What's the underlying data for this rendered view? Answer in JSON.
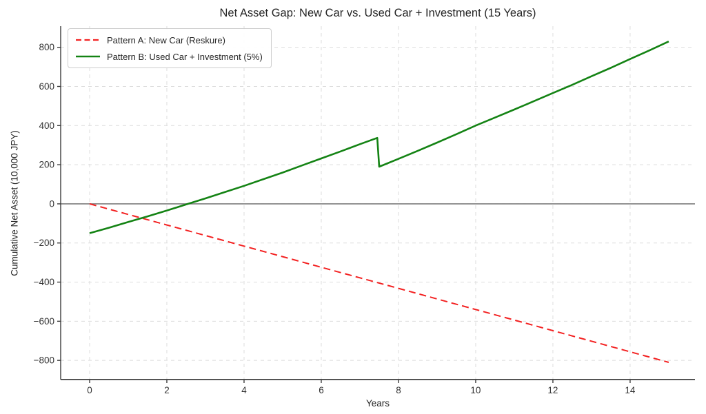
{
  "chart_data": {
    "type": "line",
    "title": "Net Asset Gap: New Car vs. Used Car + Investment (15 Years)",
    "xlabel": "Years",
    "ylabel": "Cumulative Net Asset (10,000 JPY)",
    "xlim": [
      -0.75,
      15.68
    ],
    "ylim": [
      -898,
      908
    ],
    "x_ticks": [
      0,
      2,
      4,
      6,
      8,
      10,
      12,
      14
    ],
    "x_tick_labels": [
      "0",
      "2",
      "4",
      "6",
      "8",
      "10",
      "12",
      "14"
    ],
    "y_ticks": [
      -800,
      -600,
      -400,
      -200,
      0,
      200,
      400,
      600,
      800
    ],
    "y_tick_labels": [
      "−800",
      "−600",
      "−400",
      "−200",
      "0",
      "200",
      "400",
      "600",
      "800"
    ],
    "grid": {
      "visible": true,
      "style": "dashed",
      "color": "#dcdcdc"
    },
    "zero_line": {
      "y": 0,
      "color": "#7d7d7d"
    },
    "legend_position": "upper-left",
    "series": [
      {
        "name": "Pattern A: New Car (Reskure)",
        "color": "#f32121",
        "line_style": "dashed",
        "line_width": 2,
        "points": [
          [
            0,
            0
          ],
          [
            1,
            -54
          ],
          [
            2,
            -108
          ],
          [
            3,
            -162
          ],
          [
            4,
            -216
          ],
          [
            5,
            -270
          ],
          [
            6,
            -324
          ],
          [
            7,
            -378
          ],
          [
            8,
            -432
          ],
          [
            9,
            -486
          ],
          [
            10,
            -540
          ],
          [
            11,
            -594
          ],
          [
            12,
            -648
          ],
          [
            13,
            -702
          ],
          [
            14,
            -756
          ],
          [
            15,
            -810
          ]
        ]
      },
      {
        "name": "Pattern B: Used Car + Investment (5%)",
        "color": "#148314",
        "line_style": "solid",
        "line_width": 2.6,
        "points": [
          [
            0,
            -150
          ],
          [
            0.5,
            -122
          ],
          [
            1,
            -93
          ],
          [
            1.5,
            -64
          ],
          [
            2,
            -34
          ],
          [
            2.5,
            -3
          ],
          [
            3,
            28
          ],
          [
            3.5,
            60
          ],
          [
            4,
            92
          ],
          [
            4.5,
            126
          ],
          [
            5,
            160
          ],
          [
            5.5,
            196
          ],
          [
            6,
            232
          ],
          [
            6.5,
            268
          ],
          [
            7,
            305
          ],
          [
            7.45,
            337
          ],
          [
            7.5,
            190
          ],
          [
            8,
            230
          ],
          [
            8.5,
            271
          ],
          [
            9,
            313
          ],
          [
            9.5,
            356
          ],
          [
            10,
            400
          ],
          [
            10.5,
            441
          ],
          [
            11,
            482
          ],
          [
            11.5,
            524
          ],
          [
            12,
            566
          ],
          [
            12.5,
            608
          ],
          [
            13,
            652
          ],
          [
            13.5,
            695
          ],
          [
            14,
            740
          ],
          [
            14.5,
            784
          ],
          [
            15,
            830
          ]
        ]
      }
    ]
  }
}
